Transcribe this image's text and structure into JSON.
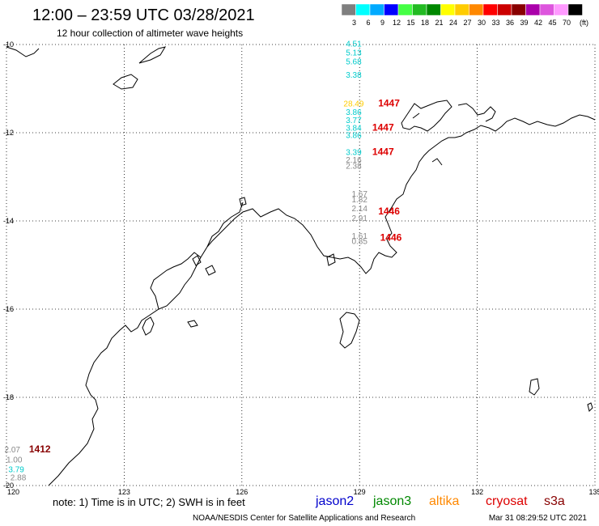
{
  "header": {
    "title": "12:00 – 23:59 UTC 03/28/2021",
    "subtitle": "12 hour collection of altimeter wave heights"
  },
  "legend": {
    "unit": "(ft)",
    "bins": [
      {
        "label": "3",
        "color": "#7f7f7f"
      },
      {
        "label": "6",
        "color": "#00ffff"
      },
      {
        "label": "9",
        "color": "#00aaff"
      },
      {
        "label": "12",
        "color": "#0000ff"
      },
      {
        "label": "15",
        "color": "#44ff44"
      },
      {
        "label": "18",
        "color": "#22bb22"
      },
      {
        "label": "21",
        "color": "#008800"
      },
      {
        "label": "24",
        "color": "#ffff00"
      },
      {
        "label": "27",
        "color": "#ffcc00"
      },
      {
        "label": "30",
        "color": "#ff8800"
      },
      {
        "label": "33",
        "color": "#ff0000"
      },
      {
        "label": "36",
        "color": "#cc0000"
      },
      {
        "label": "39",
        "color": "#880000"
      },
      {
        "label": "42",
        "color": "#aa00aa"
      },
      {
        "label": "45",
        "color": "#dd55dd"
      },
      {
        "label": "70",
        "color": "#ff99ff"
      },
      {
        "label": "",
        "color": "#000000"
      }
    ]
  },
  "map": {
    "lon_range": [
      120,
      135
    ],
    "lat_range": [
      -20,
      -10
    ],
    "grid": true,
    "lon_ticks": [
      "120",
      "123",
      "126",
      "129",
      "132",
      "135"
    ],
    "lat_ticks": [
      "-10",
      "-12",
      "-14",
      "-16",
      "-18",
      "-20"
    ]
  },
  "observations": [
    {
      "text": "4.51",
      "lon": 128.85,
      "lat": -10.05,
      "color": "#00cccc"
    },
    {
      "text": "5.13",
      "lon": 128.85,
      "lat": -10.25,
      "color": "#00cccc"
    },
    {
      "text": "5.68",
      "lon": 128.85,
      "lat": -10.45,
      "color": "#00cccc"
    },
    {
      "text": "3.38",
      "lon": 128.85,
      "lat": -10.75,
      "color": "#00cccc"
    },
    {
      "text": "28.49",
      "lon": 128.85,
      "lat": -11.4,
      "color": "#ffcc00"
    },
    {
      "text": "3.86",
      "lon": 128.85,
      "lat": -11.6,
      "color": "#00cccc"
    },
    {
      "text": "3.77",
      "lon": 128.85,
      "lat": -11.78,
      "color": "#00cccc"
    },
    {
      "text": "3.84",
      "lon": 128.85,
      "lat": -11.95,
      "color": "#00cccc"
    },
    {
      "text": "3.86",
      "lon": 128.85,
      "lat": -12.12,
      "color": "#00cccc"
    },
    {
      "text": "3.39",
      "lon": 128.85,
      "lat": -12.5,
      "color": "#00cccc"
    },
    {
      "text": "2.16",
      "lon": 128.85,
      "lat": -12.68,
      "color": "#888888"
    },
    {
      "text": "2.38",
      "lon": 128.85,
      "lat": -12.82,
      "color": "#888888"
    },
    {
      "text": "1.67",
      "lon": 129.0,
      "lat": -13.45,
      "color": "#888888"
    },
    {
      "text": "1.82",
      "lon": 129.0,
      "lat": -13.58,
      "color": "#888888"
    },
    {
      "text": "2.14",
      "lon": 129.0,
      "lat": -13.78,
      "color": "#888888"
    },
    {
      "text": "2.91",
      "lon": 129.0,
      "lat": -14.0,
      "color": "#888888"
    },
    {
      "text": "1.61",
      "lon": 129.0,
      "lat": -14.4,
      "color": "#888888"
    },
    {
      "text": "0.85",
      "lon": 129.0,
      "lat": -14.52,
      "color": "#888888"
    },
    {
      "text": "2.07",
      "lon": 120.15,
      "lat": -19.25,
      "color": "#888888"
    },
    {
      "text": "1.00",
      "lon": 120.2,
      "lat": -19.48,
      "color": "#888888"
    },
    {
      "text": "3.79",
      "lon": 120.25,
      "lat": -19.7,
      "color": "#00cccc"
    },
    {
      "text": "2.88",
      "lon": 120.3,
      "lat": -19.88,
      "color": "#888888"
    }
  ],
  "time_labels": [
    {
      "text": "1447",
      "lon": 129.75,
      "lat": -11.4,
      "color": "#dd0000"
    },
    {
      "text": "1447",
      "lon": 129.6,
      "lat": -11.95,
      "color": "#dd0000"
    },
    {
      "text": "1447",
      "lon": 129.6,
      "lat": -12.5,
      "color": "#dd0000"
    },
    {
      "text": "1446",
      "lon": 129.75,
      "lat": -13.85,
      "color": "#dd0000"
    },
    {
      "text": "1446",
      "lon": 129.8,
      "lat": -14.45,
      "color": "#dd0000"
    },
    {
      "text": "1412",
      "lon": 120.85,
      "lat": -19.25,
      "color": "#880000"
    }
  ],
  "footer": {
    "note": "note:  1) Time is in UTC;  2) SWH is in feet",
    "satellites": [
      {
        "name": "jason2",
        "color": "#0000cc"
      },
      {
        "name": "jason3",
        "color": "#008800"
      },
      {
        "name": "altika",
        "color": "#ff8800"
      },
      {
        "name": "cryosat",
        "color": "#dd0000"
      },
      {
        "name": "s3a",
        "color": "#880000"
      }
    ],
    "credit": "NOAA/NESDIS Center for Satellite Applications and Research",
    "timestamp": "Mar 31 08:29:52 UTC 2021"
  }
}
